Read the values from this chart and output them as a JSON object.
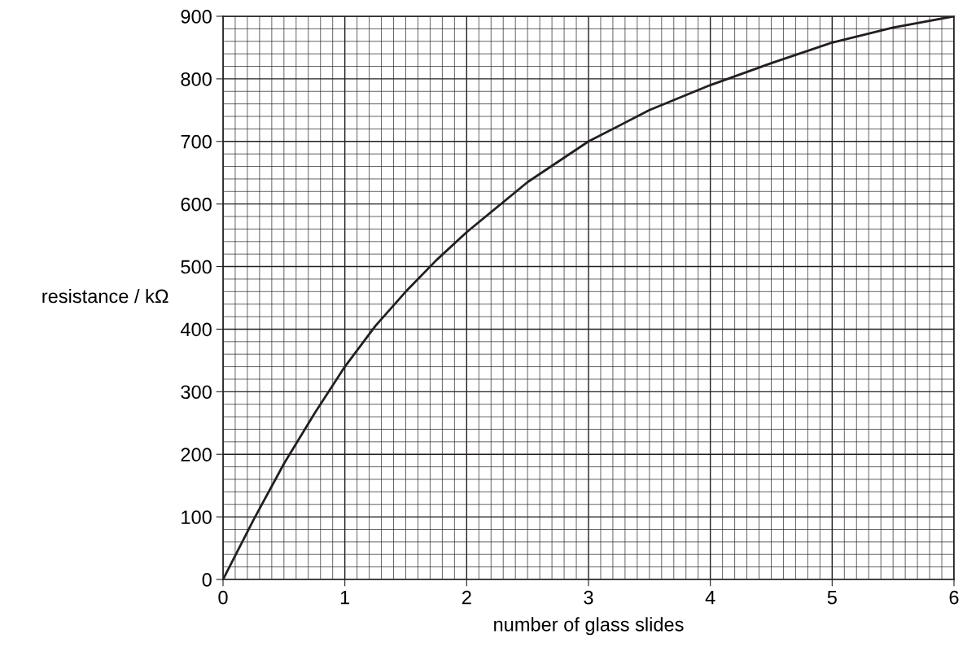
{
  "chart_data": {
    "type": "line",
    "xlabel": "number of glass slides",
    "ylabel": "resistance / kΩ",
    "x": [
      0,
      0.25,
      0.5,
      0.75,
      1,
      1.25,
      1.5,
      1.75,
      2,
      2.5,
      3,
      3.5,
      4,
      4.5,
      5,
      5.5,
      6
    ],
    "series": [
      {
        "color": "#231f20",
        "values": [
          0,
          95,
          185,
          265,
          340,
          405,
          460,
          510,
          555,
          635,
          700,
          750,
          790,
          825,
          858,
          882,
          900
        ]
      }
    ],
    "xlim": [
      0,
      6
    ],
    "ylim": [
      0,
      900
    ],
    "xticks": [
      0,
      1,
      2,
      3,
      4,
      5,
      6
    ],
    "yticks": [
      0,
      100,
      200,
      300,
      400,
      500,
      600,
      700,
      800,
      900
    ],
    "grid": true,
    "marker": "none",
    "line_style": "solid"
  }
}
